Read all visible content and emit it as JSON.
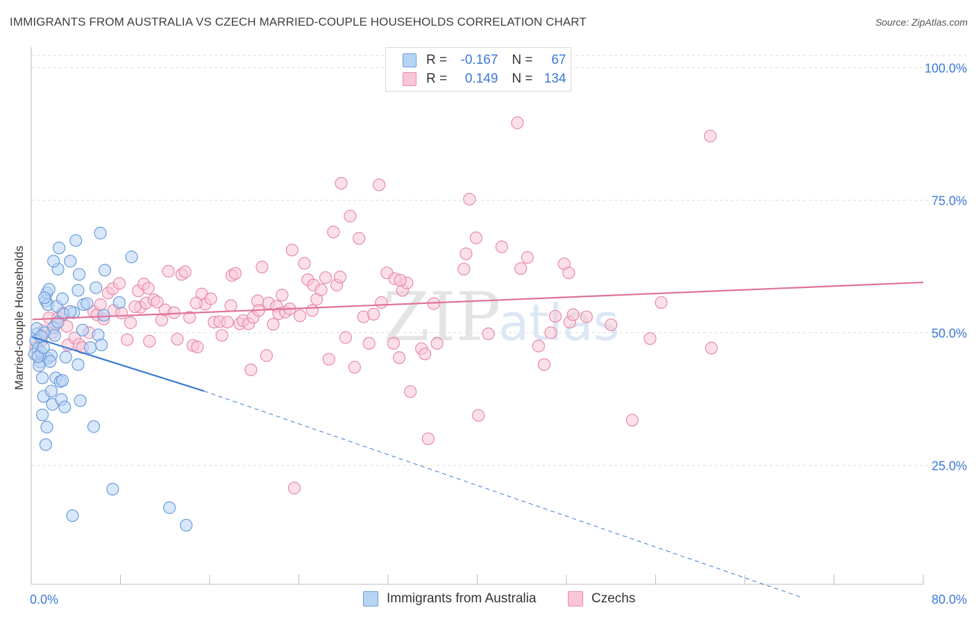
{
  "title": "IMMIGRANTS FROM AUSTRALIA VS CZECH MARRIED-COUPLE HOUSEHOLDS CORRELATION CHART",
  "source": "Source: ZipAtlas.com",
  "watermark": {
    "part1": "ZIP",
    "part2": "atlas"
  },
  "legend": {
    "series1": {
      "r_label": "R =",
      "r_value": "-0.167",
      "n_label": "N =",
      "n_value": "67"
    },
    "series2": {
      "r_label": "R =",
      "r_value": "0.149",
      "n_label": "N =",
      "n_value": "134"
    }
  },
  "colors": {
    "blue_fill": "#b8d4f5",
    "blue_stroke": "#6a9bd8",
    "blue_line": "#3a78d0",
    "pink_fill": "#f9c6d6",
    "pink_stroke": "#e68aa8",
    "pink_line": "#e0709a",
    "axis_text": "#3c78d8",
    "grid": "#dddddd"
  },
  "chart_data": {
    "type": "scatter",
    "title": "IMMIGRANTS FROM AUSTRALIA VS CZECH MARRIED-COUPLE HOUSEHOLDS CORRELATION CHART",
    "xlabel": "",
    "ylabel": "Married-couple Households",
    "xlim": [
      0,
      80
    ],
    "ylim": [
      0,
      105
    ],
    "x_tick_labels": [
      {
        "value": 0,
        "label": "0.0%"
      },
      {
        "value": 80,
        "label": "80.0%"
      }
    ],
    "y_tick_labels": [
      {
        "value": 100,
        "label": "100.0%"
      },
      {
        "value": 75,
        "label": "75.0%"
      },
      {
        "value": 50,
        "label": "50.0%"
      },
      {
        "value": 25,
        "label": "25.0%"
      }
    ],
    "series": [
      {
        "name": "Immigrants from Australia",
        "color": "blue",
        "trend": {
          "x0": 0.1,
          "y0": 49.2,
          "x1": 15.5,
          "y1": 39.0,
          "dash_to_x": 69.2,
          "dash_to_y": 0.0
        },
        "points": [
          [
            0.5,
            49.8
          ],
          [
            0.4,
            48.5
          ],
          [
            0.6,
            47.0
          ],
          [
            0.3,
            46.0
          ],
          [
            0.8,
            44.5
          ],
          [
            0.5,
            50.8
          ],
          [
            1.2,
            50.0
          ],
          [
            0.9,
            46.3
          ],
          [
            0.7,
            43.8
          ],
          [
            1.0,
            41.5
          ],
          [
            1.3,
            56.0
          ],
          [
            1.4,
            57.5
          ],
          [
            1.5,
            55.3
          ],
          [
            1.5,
            45.2
          ],
          [
            1.8,
            45.7
          ],
          [
            1.7,
            44.6
          ],
          [
            1.1,
            38.0
          ],
          [
            1.0,
            34.5
          ],
          [
            1.4,
            32.2
          ],
          [
            1.3,
            28.9
          ],
          [
            1.8,
            39.0
          ],
          [
            1.9,
            36.5
          ],
          [
            2.0,
            51.0
          ],
          [
            2.1,
            49.5
          ],
          [
            2.3,
            55.0
          ],
          [
            2.2,
            41.5
          ],
          [
            2.4,
            62.0
          ],
          [
            2.5,
            66.0
          ],
          [
            2.6,
            40.8
          ],
          [
            2.8,
            56.4
          ],
          [
            2.8,
            41.0
          ],
          [
            2.7,
            37.4
          ],
          [
            2.9,
            53.5
          ],
          [
            3.1,
            45.4
          ],
          [
            3.0,
            36.0
          ],
          [
            3.5,
            63.5
          ],
          [
            3.8,
            53.8
          ],
          [
            4.0,
            67.4
          ],
          [
            4.2,
            44.0
          ],
          [
            4.3,
            61.0
          ],
          [
            4.2,
            58.0
          ],
          [
            4.4,
            37.2
          ],
          [
            4.6,
            50.5
          ],
          [
            4.7,
            55.3
          ],
          [
            5.0,
            55.5
          ],
          [
            5.3,
            47.2
          ],
          [
            5.6,
            32.3
          ],
          [
            5.8,
            58.5
          ],
          [
            6.0,
            49.6
          ],
          [
            6.2,
            68.8
          ],
          [
            6.3,
            47.7
          ],
          [
            6.5,
            53.3
          ],
          [
            6.6,
            61.8
          ],
          [
            7.3,
            20.5
          ],
          [
            7.9,
            55.7
          ],
          [
            9.0,
            64.3
          ],
          [
            3.7,
            15.5
          ],
          [
            12.4,
            17.0
          ],
          [
            13.9,
            13.7
          ],
          [
            1.6,
            58.2
          ],
          [
            2.0,
            63.5
          ],
          [
            1.2,
            56.6
          ],
          [
            0.6,
            45.5
          ],
          [
            0.9,
            49.3
          ],
          [
            3.5,
            54.0
          ],
          [
            2.4,
            52.0
          ],
          [
            1.1,
            47.2
          ]
        ]
      },
      {
        "name": "Czechs",
        "color": "pink",
        "trend": {
          "x0": 0.1,
          "y0": 52.5,
          "x1": 80.0,
          "y1": 59.5
        },
        "points": [
          [
            0.4,
            47.2
          ],
          [
            0.6,
            45.5
          ],
          [
            0.9,
            48.5
          ],
          [
            1.1,
            50.4
          ],
          [
            1.6,
            52.8
          ],
          [
            1.9,
            50.0
          ],
          [
            2.2,
            51.6
          ],
          [
            2.4,
            52.8
          ],
          [
            2.8,
            53.8
          ],
          [
            3.2,
            51.2
          ],
          [
            3.3,
            47.7
          ],
          [
            3.9,
            49.0
          ],
          [
            4.3,
            47.8
          ],
          [
            4.6,
            47.2
          ],
          [
            5.2,
            50.0
          ],
          [
            5.6,
            54.0
          ],
          [
            5.9,
            53.4
          ],
          [
            6.2,
            55.3
          ],
          [
            6.5,
            52.6
          ],
          [
            6.9,
            57.5
          ],
          [
            7.3,
            58.3
          ],
          [
            7.4,
            54.2
          ],
          [
            7.9,
            59.3
          ],
          [
            8.1,
            53.7
          ],
          [
            8.6,
            48.7
          ],
          [
            8.9,
            51.9
          ],
          [
            9.6,
            57.9
          ],
          [
            9.8,
            54.8
          ],
          [
            10.1,
            59.2
          ],
          [
            10.3,
            55.6
          ],
          [
            10.6,
            48.4
          ],
          [
            11.0,
            56.2
          ],
          [
            11.3,
            55.8
          ],
          [
            11.7,
            52.4
          ],
          [
            12.0,
            54.3
          ],
          [
            12.3,
            61.6
          ],
          [
            12.8,
            53.8
          ],
          [
            13.1,
            48.8
          ],
          [
            13.5,
            61.0
          ],
          [
            13.8,
            61.5
          ],
          [
            14.2,
            52.9
          ],
          [
            14.5,
            47.6
          ],
          [
            14.9,
            47.3
          ],
          [
            15.3,
            57.3
          ],
          [
            15.6,
            55.4
          ],
          [
            16.1,
            56.4
          ],
          [
            16.4,
            52.0
          ],
          [
            16.9,
            52.1
          ],
          [
            17.1,
            49.5
          ],
          [
            17.6,
            52.0
          ],
          [
            17.9,
            55.1
          ],
          [
            18.0,
            60.8
          ],
          [
            18.3,
            61.2
          ],
          [
            18.7,
            51.7
          ],
          [
            19.0,
            52.3
          ],
          [
            19.5,
            51.7
          ],
          [
            19.7,
            43.0
          ],
          [
            19.9,
            52.9
          ],
          [
            20.3,
            56.0
          ],
          [
            20.4,
            54.2
          ],
          [
            20.7,
            62.4
          ],
          [
            21.1,
            45.7
          ],
          [
            21.3,
            55.6
          ],
          [
            21.7,
            51.6
          ],
          [
            22.0,
            55.0
          ],
          [
            22.2,
            53.6
          ],
          [
            22.5,
            57.1
          ],
          [
            22.8,
            53.9
          ],
          [
            23.2,
            54.5
          ],
          [
            23.4,
            65.6
          ],
          [
            23.6,
            20.7
          ],
          [
            24.1,
            53.2
          ],
          [
            24.5,
            63.1
          ],
          [
            24.8,
            60.0
          ],
          [
            25.2,
            54.2
          ],
          [
            25.3,
            59.0
          ],
          [
            25.6,
            56.3
          ],
          [
            26.0,
            58.1
          ],
          [
            26.4,
            60.4
          ],
          [
            26.7,
            45.0
          ],
          [
            27.1,
            69.0
          ],
          [
            27.4,
            59.0
          ],
          [
            27.8,
            78.2
          ],
          [
            28.2,
            49.1
          ],
          [
            28.6,
            72.0
          ],
          [
            29.0,
            43.5
          ],
          [
            29.4,
            67.8
          ],
          [
            29.8,
            53.0
          ],
          [
            30.3,
            48.0
          ],
          [
            30.7,
            53.5
          ],
          [
            31.2,
            77.9
          ],
          [
            31.4,
            55.7
          ],
          [
            31.9,
            61.3
          ],
          [
            32.5,
            48.0
          ],
          [
            32.6,
            60.2
          ],
          [
            33.0,
            45.3
          ],
          [
            33.3,
            58.0
          ],
          [
            33.7,
            59.4
          ],
          [
            34.0,
            38.9
          ],
          [
            35.0,
            47.0
          ],
          [
            35.3,
            46.0
          ],
          [
            35.6,
            30.0
          ],
          [
            36.1,
            55.5
          ],
          [
            36.4,
            48.0
          ],
          [
            38.8,
            62.0
          ],
          [
            39.0,
            64.9
          ],
          [
            39.3,
            75.2
          ],
          [
            39.9,
            67.9
          ],
          [
            40.1,
            34.4
          ],
          [
            41.0,
            49.8
          ],
          [
            42.2,
            66.2
          ],
          [
            43.6,
            89.6
          ],
          [
            43.9,
            62.1
          ],
          [
            44.5,
            64.2
          ],
          [
            45.5,
            47.5
          ],
          [
            46.0,
            44.0
          ],
          [
            46.6,
            50.0
          ],
          [
            47.0,
            53.1
          ],
          [
            47.8,
            63.0
          ],
          [
            48.2,
            61.3
          ],
          [
            48.3,
            52.0
          ],
          [
            48.6,
            53.4
          ],
          [
            49.8,
            53.0
          ],
          [
            52.0,
            51.5
          ],
          [
            53.9,
            33.5
          ],
          [
            55.5,
            48.9
          ],
          [
            56.5,
            55.7
          ],
          [
            60.9,
            87.1
          ],
          [
            61.0,
            47.1
          ],
          [
            10.5,
            58.4
          ],
          [
            14.8,
            55.6
          ],
          [
            9.3,
            54.9
          ],
          [
            27.7,
            60.5
          ],
          [
            33.1,
            59.9
          ]
        ]
      }
    ]
  },
  "bottom_legend": {
    "series1": "Immigrants from Australia",
    "series2": "Czechs"
  }
}
